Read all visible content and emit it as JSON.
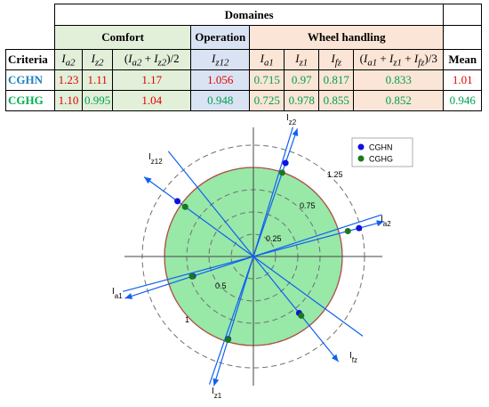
{
  "table": {
    "domaines_label": "Domaines",
    "groups": {
      "comfort": "Comfort",
      "operation": "Operation",
      "wheel": "Wheel handling"
    },
    "criteria_label": "Criteria",
    "mean_label": "Mean",
    "columns": [
      "I a2",
      "I z2",
      "(I a2 + I z2)/2",
      "I z12",
      "I a1",
      "I z1",
      "I fz",
      "(I a1 + I z1 + I fz)/3"
    ],
    "rows": [
      {
        "name": "CGHN",
        "values": [
          "1.23",
          "1.11",
          "1.17",
          "1.056",
          "0.715",
          "0.97",
          "0.817",
          "0.833"
        ],
        "mean": "1.01"
      },
      {
        "name": "CGHG",
        "values": [
          "1.10",
          "0.995",
          "1.04",
          "0.948",
          "0.725",
          "0.978",
          "0.855",
          "0.852"
        ],
        "mean": "0.946"
      }
    ]
  },
  "chart_data": {
    "type": "radar",
    "ring_labels": [
      "0.25",
      "0.5",
      "0.75",
      "1",
      "1.25"
    ],
    "rings": [
      0.25,
      0.5,
      0.75,
      1,
      1.25
    ],
    "reference_circle": 1,
    "axes": [
      {
        "name": "I_z2",
        "main": "I",
        "sub": "z2",
        "angle_deg": 71
      },
      {
        "name": "I_a2",
        "main": "I",
        "sub": "a2",
        "angle_deg": 15
      },
      {
        "name": "I_fz",
        "main": "I",
        "sub": "fz",
        "angle_deg": -51
      },
      {
        "name": "I_z1",
        "main": "I",
        "sub": "z1",
        "angle_deg": -107
      },
      {
        "name": "I_a1",
        "main": "I",
        "sub": "a1",
        "angle_deg": 198
      },
      {
        "name": "I_z12",
        "main": "I",
        "sub": "z12",
        "angle_deg": 144
      }
    ],
    "series": [
      {
        "name": "CGHN",
        "color": "#1010e0",
        "values": {
          "I_z2": 1.11,
          "I_a2": 1.23,
          "I_fz": 0.817,
          "I_z1": 0.97,
          "I_a1": 0.715,
          "I_z12": 1.056
        }
      },
      {
        "name": "CGHG",
        "color": "#1a7a1a",
        "values": {
          "I_z2": 0.995,
          "I_a2": 1.1,
          "I_fz": 0.855,
          "I_z1": 0.978,
          "I_a1": 0.725,
          "I_z12": 0.948
        }
      }
    ],
    "legend_position": "top-right",
    "colors": {
      "fill": "#98e8a8",
      "circle": "#e03020",
      "axis_line": "#1060f0",
      "ring": "#707070"
    }
  }
}
